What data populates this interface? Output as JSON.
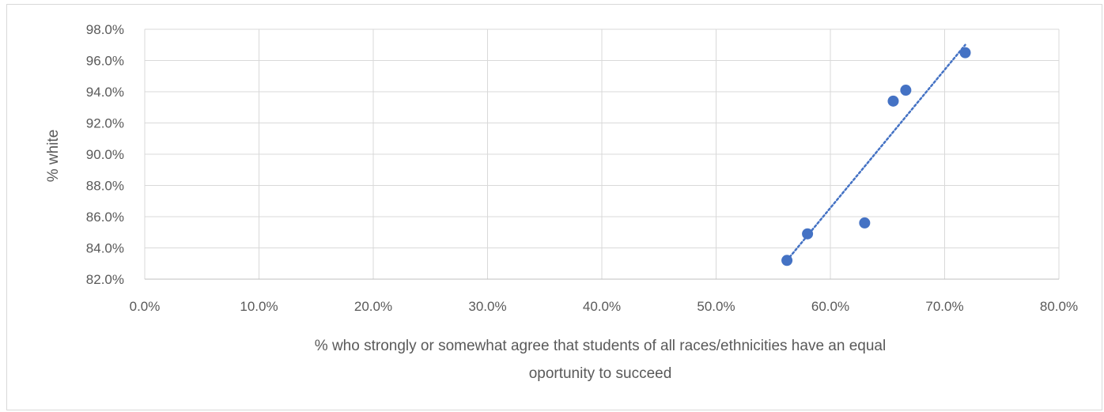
{
  "chart_data": {
    "type": "scatter",
    "title": "",
    "xlabel": "% who strongly or somewhat agree that students of all races/ethnicities have an equal",
    "xlabel_line2": "oportunity to succeed",
    "ylabel": "% white",
    "xlim": [
      0.0,
      80.0
    ],
    "ylim": [
      82.0,
      98.0
    ],
    "x_ticks": [
      "0.0%",
      "10.0%",
      "20.0%",
      "30.0%",
      "40.0%",
      "50.0%",
      "60.0%",
      "70.0%",
      "80.0%"
    ],
    "y_ticks": [
      "82.0%",
      "84.0%",
      "86.0%",
      "88.0%",
      "90.0%",
      "92.0%",
      "94.0%",
      "96.0%",
      "98.0%"
    ],
    "grid": true,
    "marker_color": "#4472c4",
    "trendline": {
      "type": "linear",
      "style": "dotted",
      "color": "#4472c4",
      "from": [
        56.2,
        83.2
      ],
      "to": [
        71.8,
        97.0
      ]
    },
    "series": [
      {
        "points": [
          {
            "x": 56.2,
            "y": 83.2
          },
          {
            "x": 58.0,
            "y": 84.9
          },
          {
            "x": 63.0,
            "y": 85.6
          },
          {
            "x": 65.5,
            "y": 93.4
          },
          {
            "x": 66.6,
            "y": 94.1
          },
          {
            "x": 71.8,
            "y": 96.5
          }
        ]
      }
    ]
  }
}
